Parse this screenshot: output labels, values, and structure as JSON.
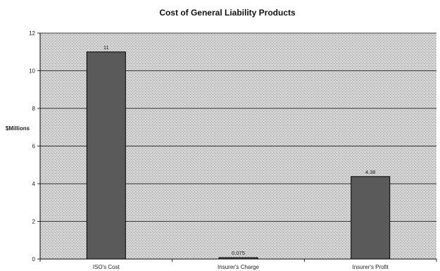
{
  "chart_data": {
    "type": "bar",
    "title": "Cost of General Liability Products",
    "xlabel": "",
    "ylabel": "$Millions",
    "categories": [
      "ISO's Cost",
      "Insurer's Charge",
      "Insurer's Profit"
    ],
    "values": [
      11,
      0.075,
      4.38
    ],
    "data_labels": [
      "11",
      "0.075",
      "4.38"
    ],
    "ylim": [
      0,
      12
    ],
    "yticks": [
      0,
      2,
      4,
      6,
      8,
      10,
      12
    ],
    "grid": true,
    "legend": "none",
    "colors": {
      "bar": "#5a5a5a",
      "plot_background": "#c8c8c8",
      "gridline": "#000000"
    }
  }
}
